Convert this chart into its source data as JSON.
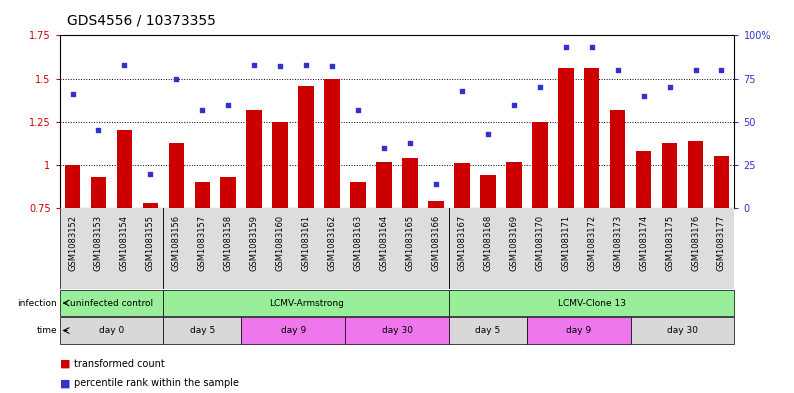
{
  "title": "GDS4556 / 10373355",
  "samples": [
    "GSM1083152",
    "GSM1083153",
    "GSM1083154",
    "GSM1083155",
    "GSM1083156",
    "GSM1083157",
    "GSM1083158",
    "GSM1083159",
    "GSM1083160",
    "GSM1083161",
    "GSM1083162",
    "GSM1083163",
    "GSM1083164",
    "GSM1083165",
    "GSM1083166",
    "GSM1083167",
    "GSM1083168",
    "GSM1083169",
    "GSM1083170",
    "GSM1083171",
    "GSM1083172",
    "GSM1083173",
    "GSM1083174",
    "GSM1083175",
    "GSM1083176",
    "GSM1083177"
  ],
  "bar_values": [
    1.0,
    0.93,
    1.2,
    0.78,
    1.13,
    0.9,
    0.93,
    1.32,
    1.25,
    1.46,
    1.5,
    0.9,
    1.02,
    1.04,
    0.79,
    1.01,
    0.94,
    1.02,
    1.25,
    1.56,
    1.56,
    1.32,
    1.08,
    1.13,
    1.14,
    1.05
  ],
  "scatter_values": [
    66,
    45,
    83,
    20,
    75,
    57,
    60,
    83,
    82,
    83,
    82,
    57,
    35,
    38,
    14,
    68,
    43,
    60,
    70,
    93,
    93,
    80,
    65,
    70,
    80,
    80
  ],
  "ylim_left": [
    0.75,
    1.75
  ],
  "ylim_right": [
    0,
    100
  ],
  "yticks_left": [
    0.75,
    1.0,
    1.25,
    1.5,
    1.75
  ],
  "ytick_labels_left": [
    "0.75",
    "1",
    "1.25",
    "1.5",
    "1.75"
  ],
  "yticks_right": [
    0,
    25,
    50,
    75,
    100
  ],
  "ytick_labels_right": [
    "0",
    "25",
    "50",
    "75",
    "100%"
  ],
  "hlines": [
    1.0,
    1.25,
    1.5
  ],
  "bar_color": "#CC0000",
  "scatter_color": "#3333CC",
  "infection_groups": [
    {
      "label": "uninfected control",
      "start": 0,
      "end": 3,
      "color": "#99EE99"
    },
    {
      "label": "LCMV-Armstrong",
      "start": 4,
      "end": 14,
      "color": "#99EE99"
    },
    {
      "label": "LCMV-Clone 13",
      "start": 15,
      "end": 25,
      "color": "#99EE99"
    }
  ],
  "time_colors": [
    "#D8D8D8",
    "#D8D8D8",
    "#EE77EE",
    "#EE77EE",
    "#D8D8D8",
    "#EE77EE",
    "#D8D8D8"
  ],
  "time_groups": [
    {
      "label": "day 0",
      "start": 0,
      "end": 3
    },
    {
      "label": "day 5",
      "start": 4,
      "end": 6
    },
    {
      "label": "day 9",
      "start": 7,
      "end": 10
    },
    {
      "label": "day 30",
      "start": 11,
      "end": 14
    },
    {
      "label": "day 5",
      "start": 15,
      "end": 17
    },
    {
      "label": "day 9",
      "start": 18,
      "end": 21
    },
    {
      "label": "day 30",
      "start": 22,
      "end": 25
    }
  ],
  "legend_bar_label": "transformed count",
  "legend_scatter_label": "percentile rank within the sample",
  "bg_color": "#FFFFFF",
  "title_fontsize": 10,
  "tick_fontsize": 7,
  "label_fontsize": 7,
  "xticklabel_fontsize": 6
}
